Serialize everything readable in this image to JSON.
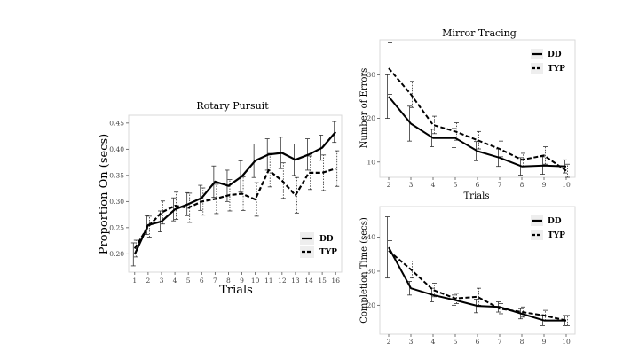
{
  "chart_data": [
    {
      "id": "rotary",
      "type": "line",
      "title": "Rotary Pursuit",
      "xlabel": "Trials",
      "ylabel": "Proportion On (secs)",
      "x": [
        1,
        2,
        3,
        4,
        5,
        6,
        7,
        8,
        9,
        10,
        11,
        12,
        13,
        14,
        15,
        16
      ],
      "xlim": [
        0.55,
        16.45
      ],
      "ylim": [
        0.165,
        0.465
      ],
      "yticks": [
        0.2,
        0.25,
        0.3,
        0.35,
        0.4,
        0.45
      ],
      "ytick_labels": [
        "0.20",
        "0.25",
        "0.30",
        "0.35",
        "0.40",
        "0.45"
      ],
      "legend_position": "right",
      "series": [
        {
          "name": "DD",
          "style": "solid",
          "values": [
            0.199,
            0.255,
            0.262,
            0.285,
            0.295,
            0.307,
            0.338,
            0.33,
            0.348,
            0.378,
            0.39,
            0.393,
            0.38,
            0.39,
            0.403,
            0.433
          ],
          "err": [
            0.022,
            0.018,
            0.02,
            0.022,
            0.022,
            0.024,
            0.03,
            0.03,
            0.03,
            0.032,
            0.03,
            0.03,
            0.03,
            0.03,
            0.024,
            0.02
          ]
        },
        {
          "name": "TYP",
          "style": "dashed",
          "values": [
            0.21,
            0.252,
            0.279,
            0.292,
            0.288,
            0.3,
            0.305,
            0.312,
            0.315,
            0.304,
            0.36,
            0.34,
            0.312,
            0.355,
            0.355,
            0.363
          ],
          "err": [
            0.016,
            0.02,
            0.022,
            0.026,
            0.028,
            0.026,
            0.028,
            0.03,
            0.032,
            0.032,
            0.032,
            0.034,
            0.034,
            0.032,
            0.034,
            0.034
          ]
        }
      ]
    },
    {
      "id": "mirror",
      "type": "line",
      "title": "Mirror Tracing",
      "xlabel": "Trials",
      "ylabel": "Number of Errors",
      "x": [
        2,
        3,
        4,
        5,
        6,
        7,
        8,
        9,
        10
      ],
      "xlim": [
        1.6,
        10.4
      ],
      "ylim": [
        6.5,
        38
      ],
      "yticks": [
        10,
        20,
        30
      ],
      "ytick_labels": [
        "10",
        "20",
        "30"
      ],
      "legend_position": "top-right",
      "series": [
        {
          "name": "DD",
          "style": "solid",
          "values": [
            25,
            18.8,
            15.5,
            15.5,
            12.5,
            11,
            9,
            9.2,
            9
          ],
          "err": [
            5,
            4,
            2,
            2.2,
            2.2,
            2,
            2,
            2,
            1.5
          ]
        },
        {
          "name": "TYP",
          "style": "dashed",
          "values": [
            31.5,
            25.5,
            18.5,
            17,
            15,
            13,
            10.5,
            11.5,
            8
          ],
          "err": [
            6,
            3,
            2,
            2,
            2,
            1.8,
            1.5,
            2,
            1.5
          ]
        }
      ]
    },
    {
      "id": "completion",
      "type": "line",
      "title": "",
      "xlabel": "",
      "ylabel": "Completion Time (secs)",
      "x": [
        2,
        3,
        4,
        5,
        6,
        7,
        8,
        9,
        10
      ],
      "xlim": [
        1.6,
        10.4
      ],
      "ylim": [
        11.5,
        49
      ],
      "yticks": [
        20,
        30,
        40
      ],
      "ytick_labels": [
        "20",
        "30",
        "40"
      ],
      "legend_position": "top-right",
      "series": [
        {
          "name": "DD",
          "style": "solid",
          "values": [
            37,
            25,
            23,
            21.5,
            19.8,
            19.5,
            17.5,
            15.5,
            15.5
          ],
          "err": [
            9,
            2,
            2,
            1.5,
            2,
            1.5,
            1.5,
            1.5,
            1.5
          ]
        },
        {
          "name": "TYP",
          "style": "dashed",
          "values": [
            36,
            30.5,
            24.5,
            22,
            22.5,
            19,
            18,
            17,
            15.5
          ],
          "err": [
            3,
            2.5,
            2,
            1.5,
            2.5,
            1.5,
            1.5,
            1.5,
            1.5
          ]
        }
      ]
    }
  ]
}
